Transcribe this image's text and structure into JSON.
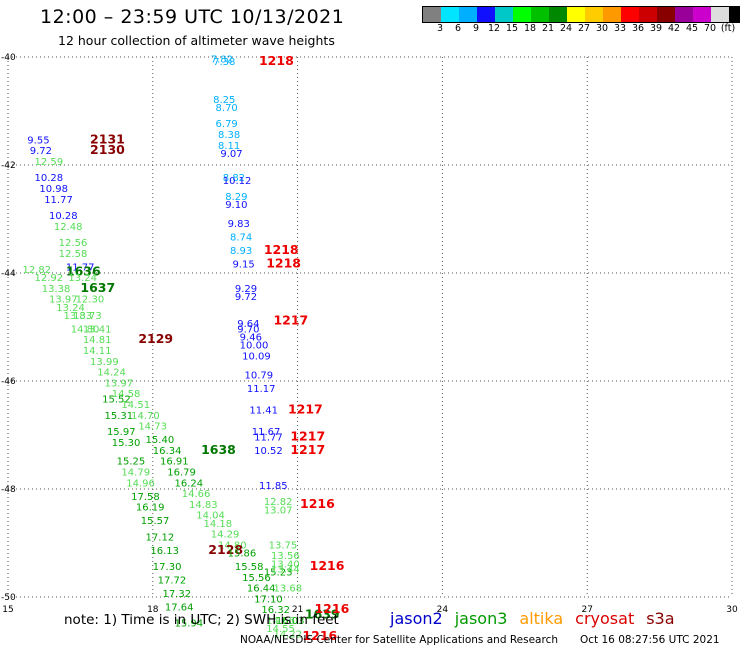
{
  "title": "12:00 – 23:59 UTC 10/13/2021",
  "subtitle": "12 hour collection of altimeter wave heights",
  "color_scale": {
    "colors": [
      "#808080",
      "#00e5ff",
      "#00b0ff",
      "#1010ff",
      "#00c8c8",
      "#00ff00",
      "#00c000",
      "#008800",
      "#ffff00",
      "#ffcc00",
      "#ff9900",
      "#ff0000",
      "#cc0000",
      "#880000",
      "#990099",
      "#cc00cc",
      "#dddddd",
      "#000000"
    ],
    "labels": [
      "3",
      "6",
      "9",
      "12",
      "15",
      "18",
      "21",
      "24",
      "27",
      "30",
      "33",
      "36",
      "39",
      "42",
      "45",
      "70",
      "(ft)"
    ]
  },
  "axes": {
    "lon_ticks": [
      "15",
      "18",
      "21",
      "24",
      "27",
      "30"
    ],
    "lat_ticks": [
      "-40",
      "-42",
      "-44",
      "-46",
      "-48",
      "-50"
    ]
  },
  "note": "note:  1) Time is in UTC;  2) SWH is in feet",
  "satellites": [
    {
      "name": "jason2",
      "color": "#0000cc"
    },
    {
      "name": "jason3",
      "color": "#009900"
    },
    {
      "name": "altika",
      "color": "#ff9900"
    },
    {
      "name": "cryosat",
      "color": "#dd0000"
    },
    {
      "name": "s3a",
      "color": "#880000"
    }
  ],
  "credit": "NOAA/NESDIS Center for Satellite Applications and Research",
  "timestamp": "Oct 16 08:27:56 UTC 2021",
  "chart_data": {
    "type": "scatter",
    "title": "12:00 – 23:59 UTC 10/13/2021",
    "subtitle": "12 hour collection of altimeter wave heights",
    "x_range": [
      15,
      30
    ],
    "y_range": [
      -50,
      -40
    ],
    "grid": true,
    "values": [
      {
        "lon": 16.7,
        "lat": -41.6,
        "value": "2131",
        "kind": "time"
      },
      {
        "lon": 16.7,
        "lat": -41.8,
        "value": "2130",
        "kind": "time"
      },
      {
        "lon": 15.4,
        "lat": -41.6,
        "value": "9.55",
        "kind": "swh"
      },
      {
        "lon": 15.45,
        "lat": -41.8,
        "value": "9.72",
        "kind": "swh"
      },
      {
        "lon": 15.55,
        "lat": -42.0,
        "value": "12.59",
        "kind": "swh"
      },
      {
        "lon": 15.55,
        "lat": -42.3,
        "value": "10.28",
        "kind": "swh"
      },
      {
        "lon": 15.65,
        "lat": -42.5,
        "value": "10.98",
        "kind": "swh"
      },
      {
        "lon": 15.75,
        "lat": -42.7,
        "value": "11.77",
        "kind": "swh"
      },
      {
        "lon": 15.85,
        "lat": -43.0,
        "value": "10.28",
        "kind": "swh"
      },
      {
        "lon": 15.95,
        "lat": -43.2,
        "value": "12.48",
        "kind": "swh"
      },
      {
        "lon": 16.05,
        "lat": -43.5,
        "value": "12.56",
        "kind": "swh"
      },
      {
        "lon": 16.05,
        "lat": -43.7,
        "value": "12.58",
        "kind": "swh"
      },
      {
        "lon": 15.3,
        "lat": -44.0,
        "value": "12.82",
        "kind": "swh"
      },
      {
        "lon": 16.2,
        "lat": -43.95,
        "value": "11.77",
        "kind": "swh"
      },
      {
        "lon": 16.2,
        "lat": -44.05,
        "value": "1636",
        "kind": "time"
      },
      {
        "lon": 15.55,
        "lat": -44.15,
        "value": "12.92",
        "kind": "swh"
      },
      {
        "lon": 16.25,
        "lat": -44.15,
        "value": "13.24",
        "kind": "swh"
      },
      {
        "lon": 15.7,
        "lat": -44.35,
        "value": "13.38",
        "kind": "swh"
      },
      {
        "lon": 16.5,
        "lat": -44.35,
        "value": "1637",
        "kind": "time"
      },
      {
        "lon": 15.85,
        "lat": -44.55,
        "value": "13.97",
        "kind": "swh"
      },
      {
        "lon": 16.4,
        "lat": -44.55,
        "value": "12.30",
        "kind": "swh"
      },
      {
        "lon": 16.0,
        "lat": -44.7,
        "value": "13.24",
        "kind": "swh"
      },
      {
        "lon": 16.35,
        "lat": -44.85,
        "value": "13.73",
        "kind": "swh"
      },
      {
        "lon": 16.15,
        "lat": -44.85,
        "value": "13.83",
        "kind": "swh"
      },
      {
        "lon": 16.55,
        "lat": -45.1,
        "value": "13.41",
        "kind": "swh"
      },
      {
        "lon": 16.3,
        "lat": -45.1,
        "value": "14.80",
        "kind": "swh"
      },
      {
        "lon": 16.55,
        "lat": -45.3,
        "value": "14.81",
        "kind": "swh"
      },
      {
        "lon": 17.7,
        "lat": -45.3,
        "value": "2129",
        "kind": "time"
      },
      {
        "lon": 16.55,
        "lat": -45.5,
        "value": "14.11",
        "kind": "swh"
      },
      {
        "lon": 16.7,
        "lat": -45.7,
        "value": "13.99",
        "kind": "swh"
      },
      {
        "lon": 16.85,
        "lat": -45.9,
        "value": "14.24",
        "kind": "swh"
      },
      {
        "lon": 17.0,
        "lat": -46.1,
        "value": "13.97",
        "kind": "swh"
      },
      {
        "lon": 17.15,
        "lat": -46.3,
        "value": "14.58",
        "kind": "swh"
      },
      {
        "lon": 16.95,
        "lat": -46.4,
        "value": "15.52",
        "kind": "swh"
      },
      {
        "lon": 17.35,
        "lat": -46.5,
        "value": "14.51",
        "kind": "swh"
      },
      {
        "lon": 17.0,
        "lat": -46.7,
        "value": "15.31",
        "kind": "swh"
      },
      {
        "lon": 17.55,
        "lat": -46.7,
        "value": "14.70",
        "kind": "swh"
      },
      {
        "lon": 17.7,
        "lat": -46.9,
        "value": "14.73",
        "kind": "swh"
      },
      {
        "lon": 17.05,
        "lat": -47.0,
        "value": "15.97",
        "kind": "swh"
      },
      {
        "lon": 17.85,
        "lat": -47.15,
        "value": "15.40",
        "kind": "swh"
      },
      {
        "lon": 17.15,
        "lat": -47.2,
        "value": "15.30",
        "kind": "swh"
      },
      {
        "lon": 18.0,
        "lat": -47.35,
        "value": "16.34",
        "kind": "swh"
      },
      {
        "lon": 19.0,
        "lat": -47.35,
        "value": "1638",
        "kind": "time"
      },
      {
        "lon": 17.25,
        "lat": -47.55,
        "value": "15.25",
        "kind": "swh"
      },
      {
        "lon": 18.15,
        "lat": -47.55,
        "value": "16.91",
        "kind": "swh"
      },
      {
        "lon": 17.35,
        "lat": -47.75,
        "value": "14.79",
        "kind": "swh"
      },
      {
        "lon": 18.3,
        "lat": -47.75,
        "value": "16.79",
        "kind": "swh"
      },
      {
        "lon": 17.45,
        "lat": -47.95,
        "value": "14.96",
        "kind": "swh"
      },
      {
        "lon": 18.45,
        "lat": -47.95,
        "value": "16.24",
        "kind": "swh"
      },
      {
        "lon": 18.6,
        "lat": -48.15,
        "value": "14.66",
        "kind": "swh"
      },
      {
        "lon": 17.55,
        "lat": -48.2,
        "value": "17.58",
        "kind": "swh"
      },
      {
        "lon": 18.75,
        "lat": -48.35,
        "value": "14.83",
        "kind": "swh"
      },
      {
        "lon": 17.65,
        "lat": -48.4,
        "value": "16.19",
        "kind": "swh"
      },
      {
        "lon": 18.9,
        "lat": -48.55,
        "value": "14.04",
        "kind": "swh"
      },
      {
        "lon": 17.75,
        "lat": -48.65,
        "value": "15.57",
        "kind": "swh"
      },
      {
        "lon": 19.05,
        "lat": -48.7,
        "value": "14.18",
        "kind": "swh"
      },
      {
        "lon": 19.2,
        "lat": -48.9,
        "value": "14.29",
        "kind": "swh"
      },
      {
        "lon": 17.85,
        "lat": -48.95,
        "value": "17.12",
        "kind": "swh"
      },
      {
        "lon": 19.35,
        "lat": -49.1,
        "value": "14.80",
        "kind": "swh"
      },
      {
        "lon": 17.95,
        "lat": -49.2,
        "value": "16.13",
        "kind": "swh"
      },
      {
        "lon": 19.15,
        "lat": -49.2,
        "value": "2128",
        "kind": "time"
      },
      {
        "lon": 19.55,
        "lat": -49.25,
        "value": "15.86",
        "kind": "swh"
      },
      {
        "lon": 18.0,
        "lat": -49.5,
        "value": "17.30",
        "kind": "swh"
      },
      {
        "lon": 19.7,
        "lat": -49.5,
        "value": "15.58",
        "kind": "swh"
      },
      {
        "lon": 20.3,
        "lat": -49.6,
        "value": "15.23",
        "kind": "swh"
      },
      {
        "lon": 19.85,
        "lat": -49.7,
        "value": "15.56",
        "kind": "swh"
      },
      {
        "lon": 18.1,
        "lat": -49.75,
        "value": "17.72",
        "kind": "swh"
      },
      {
        "lon": 19.95,
        "lat": -49.9,
        "value": "16.44",
        "kind": "swh"
      },
      {
        "lon": 18.2,
        "lat": -50.0,
        "value": "17.32",
        "kind": "swh"
      },
      {
        "lon": 20.1,
        "lat": -50.1,
        "value": "17.10",
        "kind": "swh"
      },
      {
        "lon": 18.25,
        "lat": -50.25,
        "value": "17.64",
        "kind": "swh"
      },
      {
        "lon": 20.25,
        "lat": -50.3,
        "value": "16.32",
        "kind": "swh"
      },
      {
        "lon": 20.35,
        "lat": -50.5,
        "value": "14.56",
        "kind": "swh"
      },
      {
        "lon": 20.55,
        "lat": -50.5,
        "value": "16.03",
        "kind": "swh"
      },
      {
        "lon": 18.45,
        "lat": -50.55,
        "value": "15.94",
        "kind": "swh"
      },
      {
        "lon": 20.35,
        "lat": -50.65,
        "value": "14.55",
        "kind": "swh"
      },
      {
        "lon": 20.5,
        "lat": -50.75,
        "value": "14.22",
        "kind": "swh"
      },
      {
        "lon": 21.15,
        "lat": -50.4,
        "value": "1639",
        "kind": "time"
      },
      {
        "lon": 21.1,
        "lat": -50.8,
        "value": "1216",
        "kind": "time"
      },
      {
        "lon": 19.2,
        "lat": -40.1,
        "value": "7.82",
        "kind": "swh"
      },
      {
        "lon": 19.25,
        "lat": -40.15,
        "value": "7.38",
        "kind": "swh"
      },
      {
        "lon": 20.2,
        "lat": -40.15,
        "value": "1218",
        "kind": "time"
      },
      {
        "lon": 19.25,
        "lat": -40.85,
        "value": "8.25",
        "kind": "swh"
      },
      {
        "lon": 19.3,
        "lat": -41.0,
        "value": "8.70",
        "kind": "swh"
      },
      {
        "lon": 19.3,
        "lat": -41.3,
        "value": "6.79",
        "kind": "swh"
      },
      {
        "lon": 19.35,
        "lat": -41.5,
        "value": "8.38",
        "kind": "swh"
      },
      {
        "lon": 19.35,
        "lat": -41.7,
        "value": "8.11",
        "kind": "swh"
      },
      {
        "lon": 19.4,
        "lat": -41.85,
        "value": "9.07",
        "kind": "swh"
      },
      {
        "lon": 19.45,
        "lat": -42.3,
        "value": "8.82",
        "kind": "swh"
      },
      {
        "lon": 19.45,
        "lat": -42.35,
        "value": "10.12",
        "kind": "swh"
      },
      {
        "lon": 19.5,
        "lat": -42.65,
        "value": "8.29",
        "kind": "swh"
      },
      {
        "lon": 19.5,
        "lat": -42.8,
        "value": "9.10",
        "kind": "swh"
      },
      {
        "lon": 19.55,
        "lat": -43.15,
        "value": "9.83",
        "kind": "swh"
      },
      {
        "lon": 19.6,
        "lat": -43.4,
        "value": "8.74",
        "kind": "swh"
      },
      {
        "lon": 19.6,
        "lat": -43.65,
        "value": "8.93",
        "kind": "swh"
      },
      {
        "lon": 20.3,
        "lat": -43.65,
        "value": "1218",
        "kind": "time"
      },
      {
        "lon": 19.65,
        "lat": -43.9,
        "value": "9.15",
        "kind": "swh"
      },
      {
        "lon": 20.35,
        "lat": -43.9,
        "value": "1218",
        "kind": "time"
      },
      {
        "lon": 19.7,
        "lat": -44.35,
        "value": "9.29",
        "kind": "swh"
      },
      {
        "lon": 19.7,
        "lat": -44.5,
        "value": "9.72",
        "kind": "swh"
      },
      {
        "lon": 19.75,
        "lat": -45.0,
        "value": "9.64",
        "kind": "swh"
      },
      {
        "lon": 20.5,
        "lat": -44.95,
        "value": "1217",
        "kind": "time"
      },
      {
        "lon": 19.75,
        "lat": -45.1,
        "value": "9.70",
        "kind": "swh"
      },
      {
        "lon": 19.8,
        "lat": -45.25,
        "value": "9.46",
        "kind": "swh"
      },
      {
        "lon": 19.8,
        "lat": -45.4,
        "value": "10.00",
        "kind": "swh"
      },
      {
        "lon": 19.85,
        "lat": -45.6,
        "value": "10.09",
        "kind": "swh"
      },
      {
        "lon": 19.9,
        "lat": -45.95,
        "value": "10.79",
        "kind": "swh"
      },
      {
        "lon": 19.95,
        "lat": -46.2,
        "value": "11.17",
        "kind": "swh"
      },
      {
        "lon": 20.0,
        "lat": -46.6,
        "value": "11.41",
        "kind": "swh"
      },
      {
        "lon": 20.8,
        "lat": -46.6,
        "value": "1217",
        "kind": "time"
      },
      {
        "lon": 20.05,
        "lat": -47.0,
        "value": "11.67",
        "kind": "swh"
      },
      {
        "lon": 20.1,
        "lat": -47.1,
        "value": "11.77",
        "kind": "swh"
      },
      {
        "lon": 20.85,
        "lat": -47.1,
        "value": "1217",
        "kind": "time"
      },
      {
        "lon": 20.1,
        "lat": -47.35,
        "value": "10.52",
        "kind": "swh"
      },
      {
        "lon": 20.85,
        "lat": -47.35,
        "value": "1217",
        "kind": "time"
      },
      {
        "lon": 20.2,
        "lat": -48.0,
        "value": "11.85",
        "kind": "swh"
      },
      {
        "lon": 20.3,
        "lat": -48.3,
        "value": "12.82",
        "kind": "swh"
      },
      {
        "lon": 20.3,
        "lat": -48.45,
        "value": "13.07",
        "kind": "swh"
      },
      {
        "lon": 21.05,
        "lat": -48.35,
        "value": "1216",
        "kind": "time"
      },
      {
        "lon": 20.4,
        "lat": -49.1,
        "value": "13.75",
        "kind": "swh"
      },
      {
        "lon": 20.45,
        "lat": -49.3,
        "value": "13.56",
        "kind": "swh"
      },
      {
        "lon": 20.45,
        "lat": -49.45,
        "value": "13.40",
        "kind": "swh"
      },
      {
        "lon": 20.45,
        "lat": -49.55,
        "value": "13.44",
        "kind": "swh"
      },
      {
        "lon": 21.25,
        "lat": -49.5,
        "value": "1216",
        "kind": "time"
      },
      {
        "lon": 20.5,
        "lat": -49.9,
        "value": "13.68",
        "kind": "swh"
      },
      {
        "lon": 21.35,
        "lat": -50.3,
        "value": "1216",
        "kind": "time"
      }
    ]
  }
}
